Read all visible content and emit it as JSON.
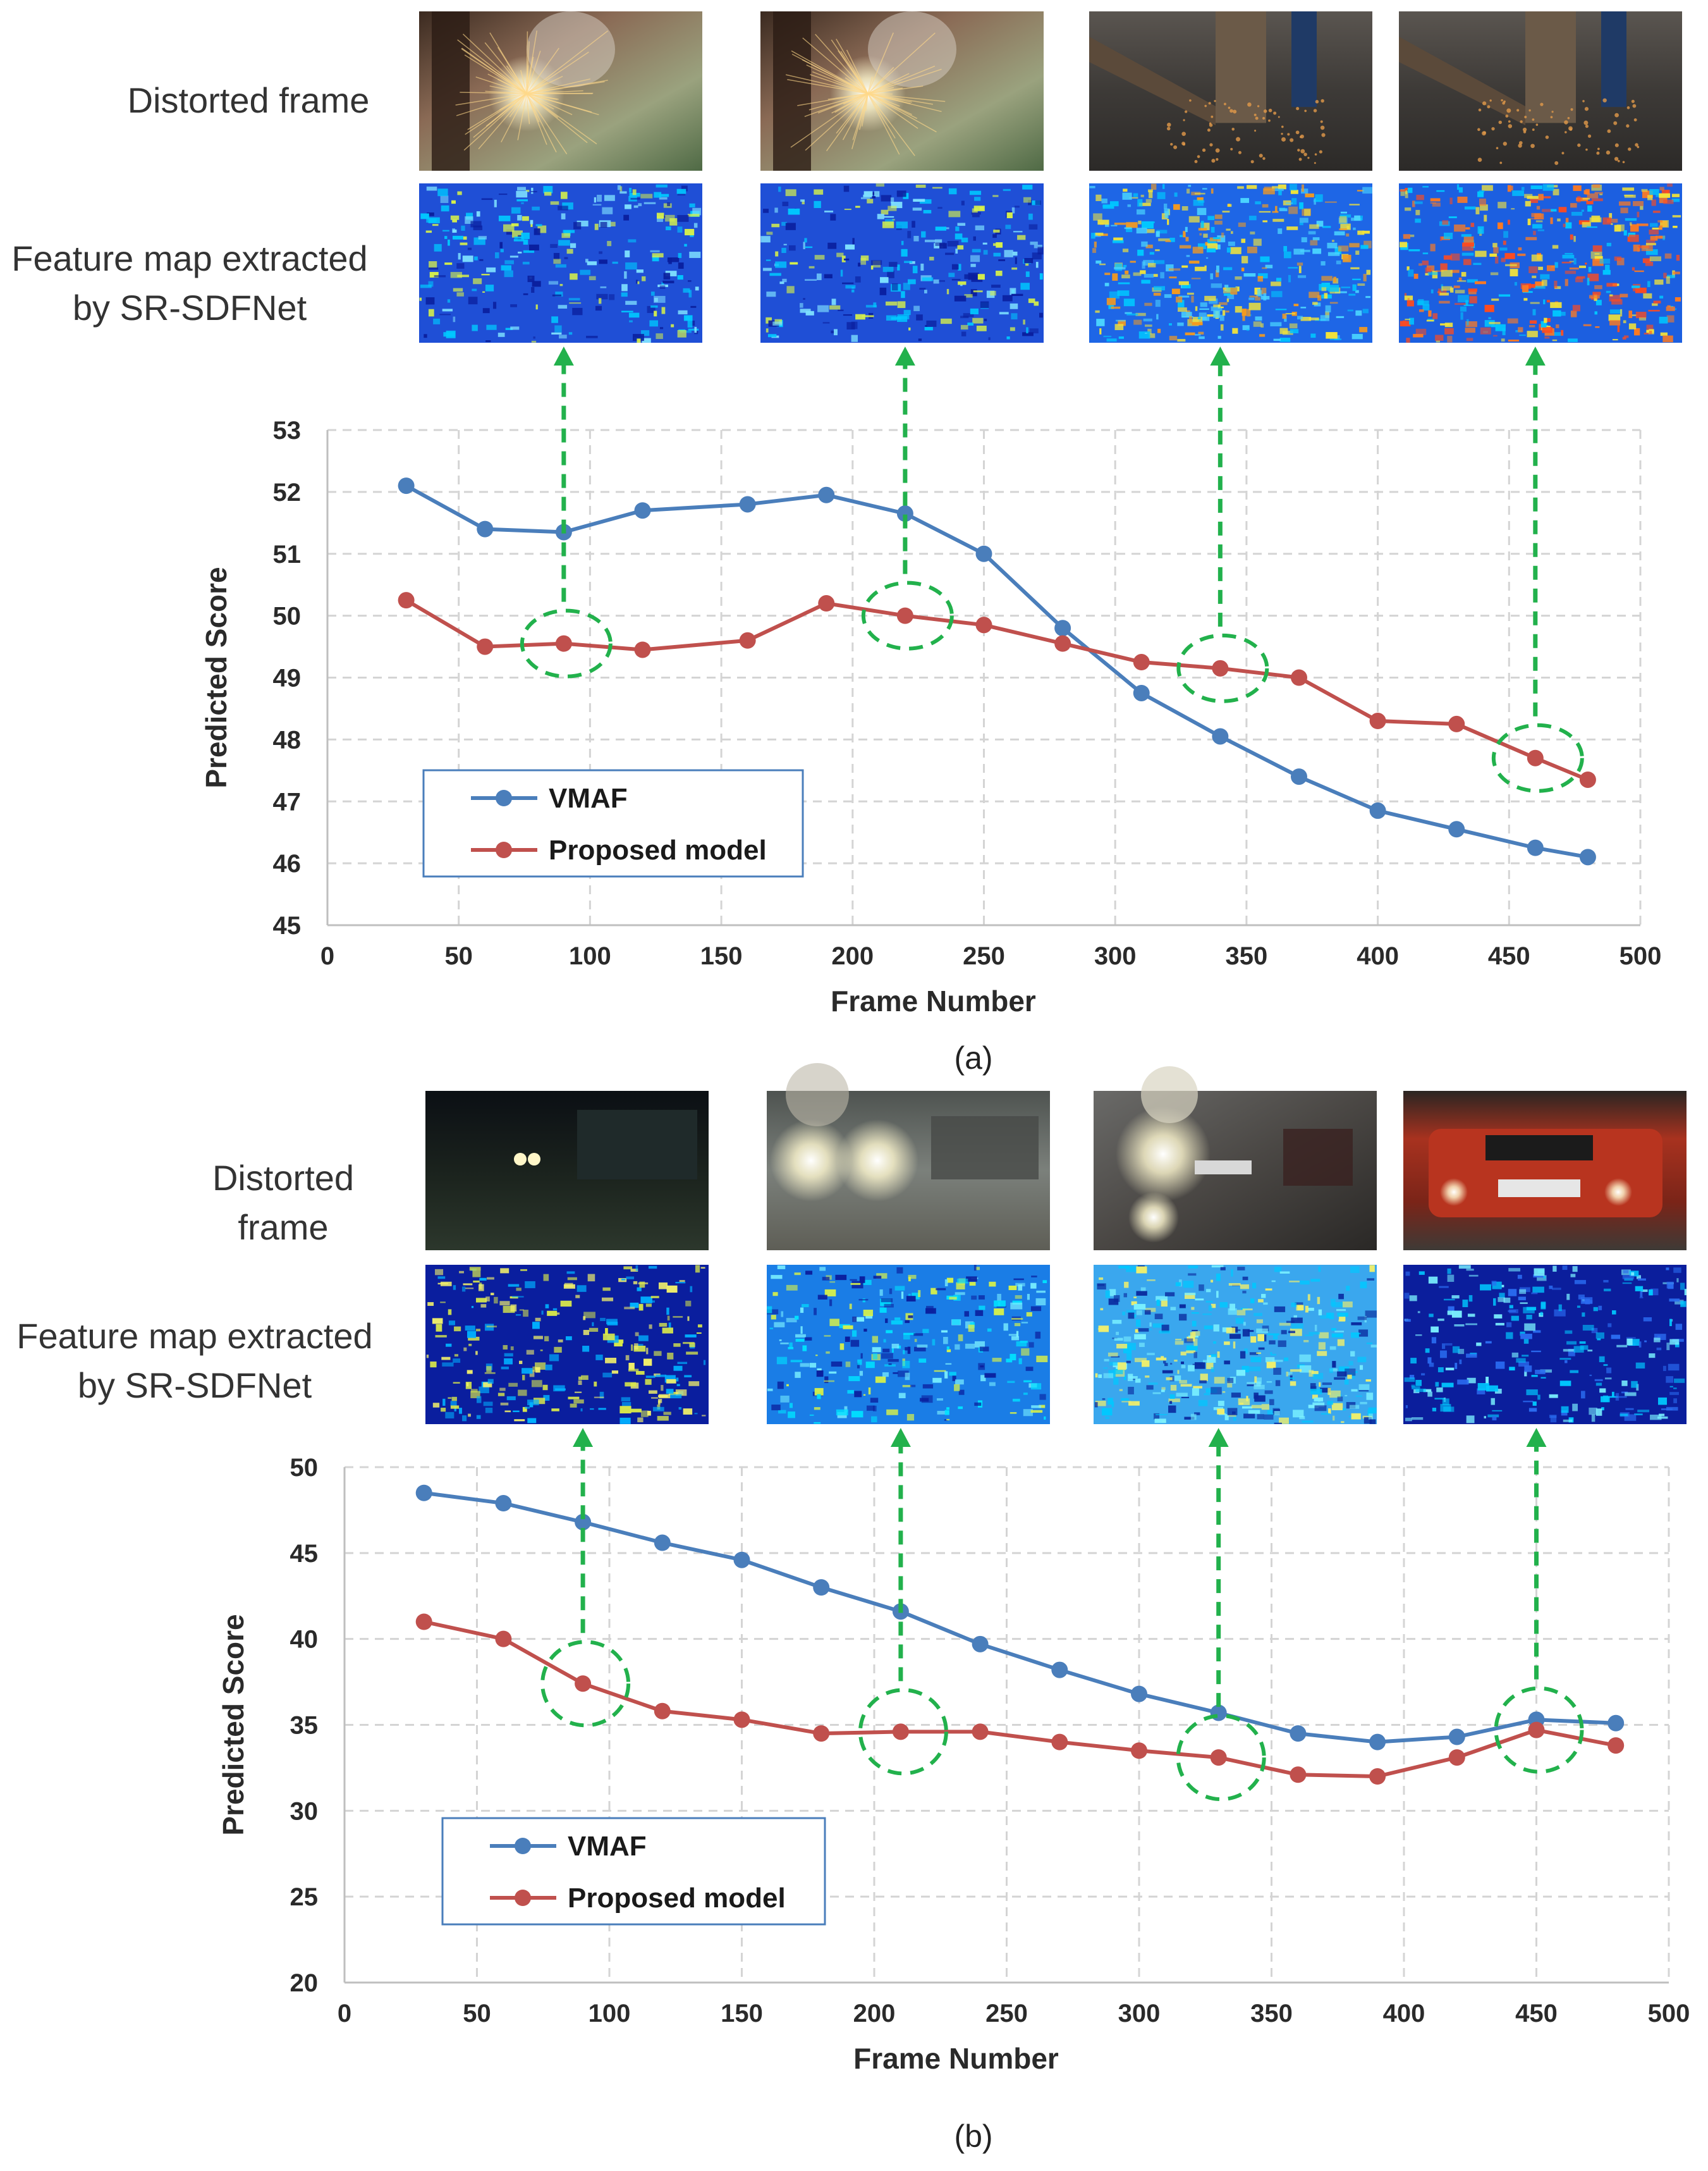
{
  "colors": {
    "vmaf": "#4a7ebb",
    "proposed": "#c0504d",
    "annotation": "#22b14c",
    "legend_border": "#4a7ebb"
  },
  "chart_data": [
    {
      "type": "line",
      "caption": "(a)",
      "row_labels": {
        "distorted": [
          "Distorted frame"
        ],
        "feature": [
          "Feature map extracted",
          "by SR-SDFNet"
        ]
      },
      "xlabel": "Frame Number",
      "ylabel": "Predicted  Score",
      "xlim": [
        0,
        500
      ],
      "ylim": [
        45,
        53
      ],
      "xticks": [
        "0",
        "50",
        "100",
        "150",
        "200",
        "250",
        "300",
        "350",
        "400",
        "450",
        "500"
      ],
      "yticks": [
        "45",
        "46",
        "47",
        "48",
        "49",
        "50",
        "51",
        "52",
        "53"
      ],
      "grid": true,
      "legend_position": "bottom-left",
      "series": [
        {
          "name": "VMAF",
          "x": [
            30,
            60,
            90,
            120,
            160,
            190,
            220,
            250,
            280,
            310,
            340,
            370,
            400,
            430,
            460,
            480
          ],
          "y": [
            52.1,
            51.4,
            51.35,
            51.7,
            51.8,
            51.95,
            51.65,
            51.0,
            49.8,
            48.75,
            48.05,
            47.4,
            46.85,
            46.55,
            46.25,
            46.1
          ]
        },
        {
          "name": "Proposed model",
          "x": [
            30,
            60,
            90,
            120,
            160,
            190,
            220,
            250,
            280,
            310,
            340,
            370,
            400,
            430,
            460,
            480
          ],
          "y": [
            50.25,
            49.5,
            49.55,
            49.45,
            49.6,
            50.2,
            50.0,
            49.85,
            49.55,
            49.25,
            49.15,
            49.0,
            48.3,
            48.25,
            47.7,
            47.35
          ]
        }
      ],
      "highlighted_frames": [
        90,
        220,
        340,
        460
      ],
      "frame_scenes": [
        "welding",
        "welding",
        "grinding",
        "grinding"
      ],
      "map_styles": [
        "cool-sparse",
        "cool-sparse",
        "warm-medium",
        "hot"
      ]
    },
    {
      "type": "line",
      "caption": "(b)",
      "row_labels": {
        "distorted": [
          "Distorted",
          "frame"
        ],
        "feature": [
          "Feature map extracted",
          "by SR-SDFNet"
        ]
      },
      "xlabel": "Frame Number",
      "ylabel": "Predicted  Score",
      "xlim": [
        0,
        500
      ],
      "ylim": [
        20,
        50
      ],
      "xticks": [
        "0",
        "50",
        "100",
        "150",
        "200",
        "250",
        "300",
        "350",
        "400",
        "450",
        "500"
      ],
      "yticks": [
        "20",
        "25",
        "30",
        "35",
        "40",
        "45",
        "50"
      ],
      "grid": true,
      "legend_position": "bottom-left",
      "series": [
        {
          "name": "VMAF",
          "x": [
            30,
            60,
            90,
            120,
            150,
            180,
            210,
            240,
            270,
            300,
            330,
            360,
            390,
            420,
            450,
            480
          ],
          "y": [
            48.5,
            47.9,
            46.8,
            45.6,
            44.6,
            43.0,
            41.6,
            39.7,
            38.2,
            36.8,
            35.7,
            34.5,
            34.0,
            34.3,
            35.3,
            35.1
          ]
        },
        {
          "name": "Proposed model",
          "x": [
            30,
            60,
            90,
            120,
            150,
            180,
            210,
            240,
            270,
            300,
            330,
            360,
            390,
            420,
            450,
            480
          ],
          "y": [
            41.0,
            40.0,
            37.4,
            35.8,
            35.3,
            34.5,
            34.6,
            34.6,
            34.0,
            33.5,
            33.1,
            32.1,
            32.0,
            33.1,
            34.7,
            33.8
          ]
        }
      ],
      "highlighted_frames": [
        90,
        210,
        330,
        450
      ],
      "frame_scenes": [
        "night-road",
        "headlights-fog",
        "headlights-close",
        "red-car"
      ],
      "map_styles": [
        "yellow-sparse",
        "cyan-fog",
        "cyan-bright",
        "dark-sparse"
      ]
    }
  ]
}
